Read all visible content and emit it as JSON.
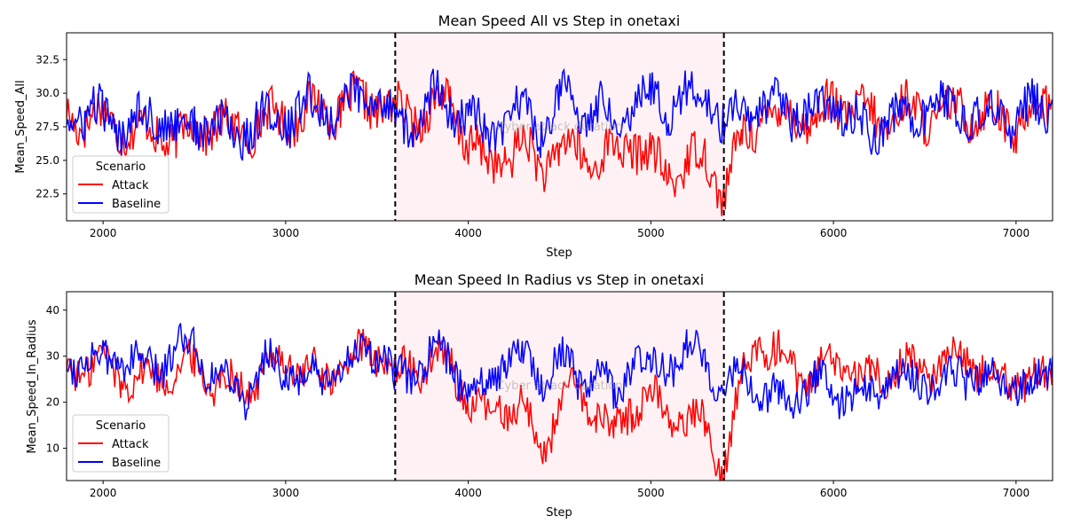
{
  "chart_data": [
    {
      "type": "line",
      "title": "Mean Speed All vs Step in onetaxi",
      "xlabel": "Step",
      "ylabel": "Mean_Speed_All",
      "xlim": [
        1800,
        7200
      ],
      "ylim": [
        20.5,
        34.5
      ],
      "xticks": [
        2000,
        3000,
        4000,
        5000,
        6000,
        7000
      ],
      "yticks": [
        "22.5",
        "25.0",
        "27.5",
        "30.0",
        "32.5"
      ],
      "attack_window": [
        3600,
        5400
      ],
      "watermark": "Cyber attack duration",
      "legend": {
        "title": "Scenario",
        "position": "lower-left",
        "entries": [
          "Attack",
          "Baseline"
        ]
      },
      "series": [
        {
          "name": "Attack",
          "color": "#ff0000",
          "x": [
            1800,
            1900,
            2000,
            2100,
            2200,
            2300,
            2400,
            2500,
            2600,
            2700,
            2800,
            2900,
            3000,
            3100,
            3200,
            3300,
            3400,
            3500,
            3600,
            3700,
            3800,
            3900,
            4000,
            4100,
            4200,
            4300,
            4400,
            4500,
            4600,
            4700,
            4800,
            4900,
            5000,
            5100,
            5200,
            5300,
            5400,
            5500,
            5600,
            5700,
            5800,
            5900,
            6000,
            6100,
            6200,
            6300,
            6400,
            6500,
            6600,
            6700,
            6800,
            6900,
            7000,
            7100,
            7200
          ],
          "values": [
            28.5,
            28.0,
            28.2,
            27.5,
            27.0,
            27.2,
            26.5,
            27.5,
            27.8,
            27.0,
            27.5,
            28.0,
            28.2,
            28.5,
            28.8,
            29.0,
            29.2,
            29.5,
            28.5,
            28.2,
            29.0,
            29.2,
            26.5,
            24.5,
            25.5,
            25.8,
            24.8,
            25.5,
            26.0,
            24.8,
            25.5,
            26.5,
            24.8,
            24.2,
            24.5,
            25.5,
            22.5,
            26.5,
            28.5,
            28.0,
            28.8,
            27.5,
            29.5,
            28.8,
            28.2,
            28.0,
            28.8,
            28.5,
            28.0,
            29.0,
            28.5,
            28.2,
            27.5,
            28.8,
            29.5
          ]
        },
        {
          "name": "Baseline",
          "color": "#0000ff",
          "x": [
            1800,
            1900,
            2000,
            2100,
            2200,
            2300,
            2400,
            2500,
            2600,
            2700,
            2800,
            2900,
            3000,
            3100,
            3200,
            3300,
            3400,
            3500,
            3600,
            3700,
            3800,
            3900,
            4000,
            4100,
            4200,
            4300,
            4400,
            4500,
            4600,
            4700,
            4800,
            4900,
            5000,
            5100,
            5200,
            5300,
            5400,
            5500,
            5600,
            5700,
            5800,
            5900,
            6000,
            6100,
            6200,
            6300,
            6400,
            6500,
            6600,
            6700,
            6800,
            6900,
            7000,
            7100,
            7200
          ],
          "values": [
            28.8,
            28.0,
            28.5,
            27.5,
            28.2,
            28.5,
            27.0,
            28.0,
            27.5,
            27.0,
            27.5,
            28.0,
            28.0,
            29.0,
            28.8,
            29.0,
            29.5,
            29.8,
            28.0,
            27.5,
            29.5,
            29.0,
            28.5,
            26.5,
            28.0,
            28.8,
            27.5,
            29.5,
            29.0,
            28.8,
            28.2,
            29.5,
            29.8,
            29.2,
            29.5,
            30.0,
            27.5,
            28.5,
            29.0,
            28.5,
            28.8,
            28.2,
            29.5,
            28.0,
            27.0,
            28.2,
            28.0,
            29.0,
            28.8,
            28.5,
            28.0,
            28.5,
            28.2,
            28.8,
            29.5
          ]
        }
      ]
    },
    {
      "type": "line",
      "title": "Mean Speed In Radius vs Step in onetaxi",
      "xlabel": "Step",
      "ylabel": "Mean_Speed_In_Radius",
      "xlim": [
        1800,
        7200
      ],
      "ylim": [
        3,
        44
      ],
      "xticks": [
        2000,
        3000,
        4000,
        5000,
        6000,
        7000
      ],
      "yticks": [
        "10",
        "20",
        "30",
        "40"
      ],
      "attack_window": [
        3600,
        5400
      ],
      "watermark": "Cyber attack duration",
      "legend": {
        "title": "Scenario",
        "position": "lower-left",
        "entries": [
          "Attack",
          "Baseline"
        ]
      },
      "series": [
        {
          "name": "Attack",
          "color": "#ff0000",
          "x": [
            1800,
            1900,
            2000,
            2100,
            2200,
            2300,
            2400,
            2500,
            2600,
            2700,
            2800,
            2900,
            3000,
            3100,
            3200,
            3300,
            3400,
            3500,
            3600,
            3700,
            3800,
            3900,
            4000,
            4100,
            4200,
            4300,
            4400,
            4500,
            4600,
            4700,
            4800,
            4900,
            5000,
            5100,
            5200,
            5300,
            5400,
            5500,
            5600,
            5700,
            5800,
            5900,
            6000,
            6100,
            6200,
            6300,
            6400,
            6500,
            6600,
            6700,
            6800,
            6900,
            7000,
            7100,
            7200
          ],
          "values": [
            27,
            28,
            29,
            26,
            25,
            26,
            27,
            28,
            25,
            24,
            23,
            28,
            29,
            27,
            25,
            28,
            30,
            31,
            26,
            27,
            29,
            28,
            21,
            16,
            20,
            19,
            9,
            20,
            22,
            18,
            13,
            20,
            21,
            18,
            16,
            15,
            6,
            25,
            34,
            30,
            27,
            26,
            28,
            26,
            25,
            27,
            28,
            27,
            29,
            31,
            28,
            26,
            25,
            24,
            27
          ]
        },
        {
          "name": "Baseline",
          "color": "#0000ff",
          "x": [
            1800,
            1900,
            2000,
            2100,
            2200,
            2300,
            2400,
            2500,
            2600,
            2700,
            2800,
            2900,
            3000,
            3100,
            3200,
            3300,
            3400,
            3500,
            3600,
            3700,
            3800,
            3900,
            4000,
            4100,
            4200,
            4300,
            4400,
            4500,
            4600,
            4700,
            4800,
            4900,
            5000,
            5100,
            5200,
            5300,
            5400,
            5500,
            5600,
            5700,
            5800,
            5900,
            6000,
            6100,
            6200,
            6300,
            6400,
            6500,
            6600,
            6700,
            6800,
            6900,
            7000,
            7100,
            7200
          ],
          "values": [
            29,
            30,
            28,
            31,
            27,
            28,
            32,
            33,
            26,
            24,
            22,
            29,
            27,
            25,
            24,
            27,
            30,
            32,
            24,
            27,
            30,
            29,
            24,
            22,
            31,
            29,
            26,
            30,
            25,
            28,
            20,
            30,
            28,
            29,
            31,
            30,
            23,
            26,
            22,
            20,
            22,
            24,
            23,
            21,
            22,
            25,
            24,
            26,
            23,
            27,
            25,
            24,
            24,
            23,
            30
          ]
        }
      ]
    }
  ]
}
